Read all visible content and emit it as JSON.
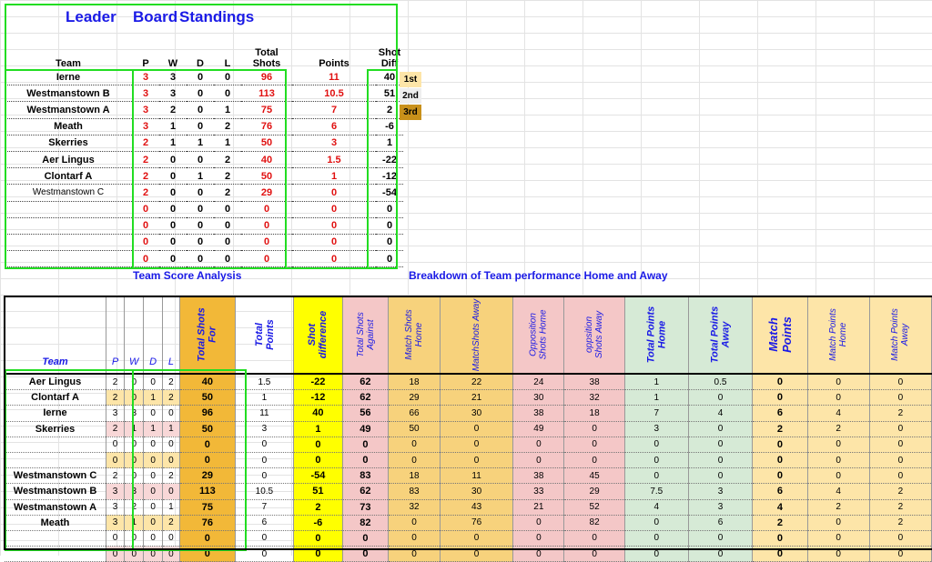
{
  "leaderboard": {
    "title_words": [
      "Leader",
      "Board",
      "Standings"
    ],
    "headers": {
      "team": "Team",
      "p": "P",
      "w": "W",
      "d": "D",
      "l": "L",
      "total_shots_1": "Total",
      "total_shots_2": "Shots",
      "points": "Points",
      "shot_diff_1": "Shot",
      "shot_diff_2": "Diff"
    },
    "rows": [
      {
        "team": "Ierne",
        "p": "3",
        "w": "3",
        "d": "0",
        "l": "0",
        "ts": "96",
        "pts": "11",
        "sd": "40"
      },
      {
        "team": "Westmanstown B",
        "p": "3",
        "w": "3",
        "d": "0",
        "l": "0",
        "ts": "113",
        "pts": "10.5",
        "sd": "51"
      },
      {
        "team": "Westmanstown A",
        "p": "3",
        "w": "2",
        "d": "0",
        "l": "1",
        "ts": "75",
        "pts": "7",
        "sd": "2"
      },
      {
        "team": "Meath",
        "p": "3",
        "w": "1",
        "d": "0",
        "l": "2",
        "ts": "76",
        "pts": "6",
        "sd": "-6"
      },
      {
        "team": "Skerries",
        "p": "2",
        "w": "1",
        "d": "1",
        "l": "1",
        "ts": "50",
        "pts": "3",
        "sd": "1"
      },
      {
        "team": "Aer Lingus",
        "p": "2",
        "w": "0",
        "d": "0",
        "l": "2",
        "ts": "40",
        "pts": "1.5",
        "sd": "-22"
      },
      {
        "team": "Clontarf A",
        "p": "2",
        "w": "0",
        "d": "1",
        "l": "2",
        "ts": "50",
        "pts": "1",
        "sd": "-12"
      },
      {
        "team": "Westmanstown C",
        "p": "2",
        "w": "0",
        "d": "0",
        "l": "2",
        "ts": "29",
        "pts": "0",
        "sd": "-54"
      },
      {
        "team": "",
        "p": "0",
        "w": "0",
        "d": "0",
        "l": "0",
        "ts": "0",
        "pts": "0",
        "sd": "0"
      },
      {
        "team": "",
        "p": "0",
        "w": "0",
        "d": "0",
        "l": "0",
        "ts": "0",
        "pts": "0",
        "sd": "0"
      },
      {
        "team": "",
        "p": "0",
        "w": "0",
        "d": "0",
        "l": "0",
        "ts": "0",
        "pts": "0",
        "sd": "0"
      },
      {
        "team": "",
        "p": "0",
        "w": "0",
        "d": "0",
        "l": "0",
        "ts": "0",
        "pts": "0",
        "sd": "0"
      }
    ],
    "badges": [
      {
        "label": "1st",
        "color": "#fde5a8"
      },
      {
        "label": "2nd",
        "color": "#eeeeee"
      },
      {
        "label": "3rd",
        "color": "#c8901a"
      }
    ]
  },
  "labels": {
    "team_score_analysis": "Team Score Analysis",
    "breakdown": "Breakdown of Team performance Home and Away"
  },
  "analysis": {
    "headers": {
      "team": "Team",
      "p": "P",
      "w": "W",
      "d": "D",
      "l": "L",
      "tsf_1": "Total Shots",
      "tsf_2": "For",
      "tp_1": "Total",
      "tp_2": "Points",
      "sdiff_1": "Shot",
      "sdiff_2": "difference",
      "tsa_1": "Total Shots",
      "tsa_2": "Against",
      "msh_1": "Match Shots",
      "msh_2": "Home",
      "msa": "MatchShots Away",
      "osh_1": "Opposition",
      "osh_2": "Shots Home",
      "osa_1": "oppsition",
      "osa_2": "Shots Away",
      "tph_1": "Total Points",
      "tph_2": "Home",
      "tpa_1": "Total Points",
      "tpa_2": "Away",
      "mp_1": "Match",
      "mp_2": "Points",
      "mph_1": "Match Points",
      "mph_2": "Home",
      "mpa_1": "Match Points",
      "mpa_2": "Away"
    },
    "rows": [
      {
        "team": "Aer Lingus",
        "p": "2",
        "w": "0",
        "d": "0",
        "l": "2",
        "tsf": "40",
        "tp": "1.5",
        "sd": "-22",
        "tsa": "62",
        "msh": "18",
        "msa": "22",
        "osh": "24",
        "osa": "38",
        "tph": "1",
        "tpa": "0.5",
        "mp": "0",
        "mph": "0",
        "mpa": "0"
      },
      {
        "team": "Clontarf A",
        "p": "2",
        "w": "0",
        "d": "1",
        "l": "2",
        "tsf": "50",
        "tp": "1",
        "sd": "-12",
        "tsa": "62",
        "msh": "29",
        "msa": "21",
        "osh": "30",
        "osa": "32",
        "tph": "1",
        "tpa": "0",
        "mp": "0",
        "mph": "0",
        "mpa": "0"
      },
      {
        "team": "Ierne",
        "p": "3",
        "w": "3",
        "d": "0",
        "l": "0",
        "tsf": "96",
        "tp": "11",
        "sd": "40",
        "tsa": "56",
        "msh": "66",
        "msa": "30",
        "osh": "38",
        "osa": "18",
        "tph": "7",
        "tpa": "4",
        "mp": "6",
        "mph": "4",
        "mpa": "2"
      },
      {
        "team": "Skerries",
        "p": "2",
        "w": "1",
        "d": "1",
        "l": "1",
        "tsf": "50",
        "tp": "3",
        "sd": "1",
        "tsa": "49",
        "msh": "50",
        "msa": "0",
        "osh": "49",
        "osa": "0",
        "tph": "3",
        "tpa": "0",
        "mp": "2",
        "mph": "2",
        "mpa": "0"
      },
      {
        "team": "",
        "p": "0",
        "w": "0",
        "d": "0",
        "l": "0",
        "tsf": "0",
        "tp": "0",
        "sd": "0",
        "tsa": "0",
        "msh": "0",
        "msa": "0",
        "osh": "0",
        "osa": "0",
        "tph": "0",
        "tpa": "0",
        "mp": "0",
        "mph": "0",
        "mpa": "0"
      },
      {
        "team": "",
        "p": "0",
        "w": "0",
        "d": "0",
        "l": "0",
        "tsf": "0",
        "tp": "0",
        "sd": "0",
        "tsa": "0",
        "msh": "0",
        "msa": "0",
        "osh": "0",
        "osa": "0",
        "tph": "0",
        "tpa": "0",
        "mp": "0",
        "mph": "0",
        "mpa": "0"
      },
      {
        "team": "Westmanstown C",
        "p": "2",
        "w": "0",
        "d": "0",
        "l": "2",
        "tsf": "29",
        "tp": "0",
        "sd": "-54",
        "tsa": "83",
        "msh": "18",
        "msa": "11",
        "osh": "38",
        "osa": "45",
        "tph": "0",
        "tpa": "0",
        "mp": "0",
        "mph": "0",
        "mpa": "0"
      },
      {
        "team": "Westmanstown B",
        "p": "3",
        "w": "3",
        "d": "0",
        "l": "0",
        "tsf": "113",
        "tp": "10.5",
        "sd": "51",
        "tsa": "62",
        "msh": "83",
        "msa": "30",
        "osh": "33",
        "osa": "29",
        "tph": "7.5",
        "tpa": "3",
        "mp": "6",
        "mph": "4",
        "mpa": "2"
      },
      {
        "team": "Westmanstown A",
        "p": "3",
        "w": "2",
        "d": "0",
        "l": "1",
        "tsf": "75",
        "tp": "7",
        "sd": "2",
        "tsa": "73",
        "msh": "32",
        "msa": "43",
        "osh": "21",
        "osa": "52",
        "tph": "4",
        "tpa": "3",
        "mp": "4",
        "mph": "2",
        "mpa": "2"
      },
      {
        "team": "Meath",
        "p": "3",
        "w": "1",
        "d": "0",
        "l": "2",
        "tsf": "76",
        "tp": "6",
        "sd": "-6",
        "tsa": "82",
        "msh": "0",
        "msa": "76",
        "osh": "0",
        "osa": "82",
        "tph": "0",
        "tpa": "6",
        "mp": "2",
        "mph": "0",
        "mpa": "2"
      },
      {
        "team": "",
        "p": "0",
        "w": "0",
        "d": "0",
        "l": "0",
        "tsf": "0",
        "tp": "0",
        "sd": "0",
        "tsa": "0",
        "msh": "0",
        "msa": "0",
        "osh": "0",
        "osa": "0",
        "tph": "0",
        "tpa": "0",
        "mp": "0",
        "mph": "0",
        "mpa": "0"
      },
      {
        "team": "",
        "p": "0",
        "w": "0",
        "d": "0",
        "l": "0",
        "tsf": "0",
        "tp": "0",
        "sd": "0",
        "tsa": "0",
        "msh": "0",
        "msa": "0",
        "osh": "0",
        "osa": "0",
        "tph": "0",
        "tpa": "0",
        "mp": "0",
        "mph": "0",
        "mpa": "0"
      }
    ]
  }
}
